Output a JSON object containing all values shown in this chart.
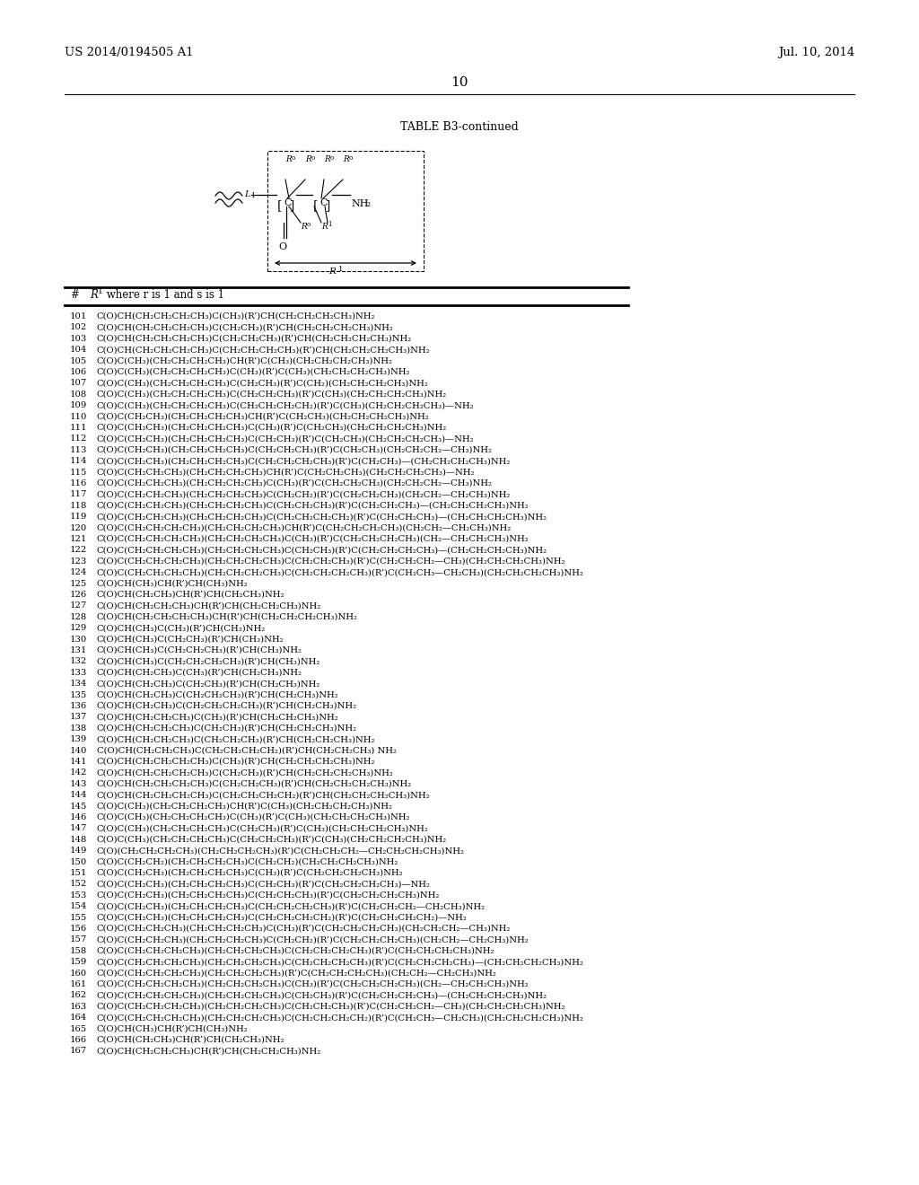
{
  "header_left": "US 2014/0194505 A1",
  "header_right": "Jul. 10, 2014",
  "page_number": "10",
  "table_title": "TABLE B3-continued",
  "background_color": "#ffffff",
  "text_color": "#000000",
  "entries": [
    "101  C(O)CH(CH₂CH₂CH₂CH₃)C(CH₃)(R’)CH(CH₂CH₂CH₂CH₃)NH₂",
    "102  C(O)CH(CH₂CH₂CH₂CH₃)C(CH₂CH₃)(R’)CH(CH₂CH₂CH₂CH₃)NH₂",
    "103  C(O)CH(CH₂CH₂CH₂CH₃)C(CH₂CH₂CH₃)(R’)CH(CH₂CH₂CH₂CH₃)NH₂",
    "104  C(O)CH(CH₂CH₂CH₂CH₃)C(CH₂CH₂CH₂CH₃)(R’)CH(CH₂CH₂CH₂CH₃)NH₂",
    "105  C(O)C(CH₃)(CH₂CH₂CH₂CH₃)CH(R’)C(CH₃)(CH₂CH₂CH₂CH₃)NH₂",
    "106  C(O)C(CH₃)(CH₂CH₂CH₂CH₃)C(CH₃)(R’)C(CH₃)(CH₂CH₂CH₂CH₃)NH₂",
    "107  C(O)C(CH₃)(CH₂CH₂CH₂CH₃)C(CH₂CH₃)(R’)C(CH₂)(CH₂CH₂CH₂CH₃)NH₂",
    "108  C(O)C(CH₃)(CH₂CH₂CH₂CH₃)C(CH₂CH₂CH₃)(R’)C(CH₃)(CH₂CH₂CH₂CH₃)NH₂",
    "109  C(O)C(CH₃)(CH₂CH₂CH₂CH₃)C(CH₂CH₂CH₂CH₂)(R’)C(CH₃)(CH₂CH₂CH₂CH₃)—NH₂",
    "110  C(O)C(CH₂CH₃)(CH₂CH₂CH₂CH₃)CH(R’)C(CH₂CH₃)(CH₂CH₂CH₂CH₃)NH₂",
    "111  C(O)C(CH₂CH₃)(CH₂CH₂CH₂CH₃)C(CH₃)(R’)C(CH₂CH₃)(CH₂CH₂CH₂CH₃)NH₂",
    "112  C(O)C(CH₂CH₃)(CH₂CH₂CH₂CH₃)C(CH₂CH₃)(R’)C(CH₂CH₃)(CH₂CH₂CH₂CH₃)—NH₂",
    "113  C(O)C(CH₂CH₃)(CH₂CH₂CH₂CH₃)C(CH₂CH₂CH₃)(R’)C(CH₂CH₃)(CH₂CH₂CH₂—CH₃)NH₂",
    "114  C(O)C(CH₂CH₃)(CH₂CH₂CH₂CH₃)C(CH₂CH₂CH₂CH₃)(R’)C(CH₂CH₃)—(CH₂CH₂CH₂CH₃)NH₂",
    "115  C(O)C(CH₂CH₂CH₃)(CH₂CH₂CH₂CH₃)CH(R’)C(CH₂CH₂CH₃)(CH₂CH₂CH₂CH₃)—NH₂",
    "116  C(O)C(CH₂CH₂CH₃)(CH₂CH₂CH₂CH₃)C(CH₃)(R’)C(CH₂CH₂CH₃)(CH₂CH₂CH₂—CH₃)NH₂",
    "117  C(O)C(CH₂CH₂CH₃)(CH₂CH₂CH₂CH₃)C(CH₂CH₂)(R’)C(CH₂CH₂CH₃)(CH₂CH₂—CH₂CH₃)NH₂",
    "118  C(O)C(CH₂CH₂CH₃)(CH₂CH₂CH₂CH₃)C(CH₂CH₂CH₃)(R’)C(CH₂CH₂CH₃)—(CH₂CH₂CH₂CH₃)NH₂",
    "119  C(O)C(CH₂CH₂CH₃)(CH₂CH₂CH₂CH₃)C(CH₂CH₂CH₂CH₂)(R’)C(CH₂CH₂CH₃)—(CH₂CH₂CH₂CH₃)NH₂",
    "120  C(O)C(CH₂CH₂CH₂CH₃)(CH₂CH₂CH₂CH₃)CH(R’)C(CH₂CH₂CH₂CH₃)(CH₂CH₂—CH₂CH₃)NH₂",
    "121  C(O)C(CH₂CH₂CH₂CH₃)(CH₂CH₂CH₂CH₃)C(CH₃)(R’)C(CH₂CH₂CH₂CH₃)(CH₂—CH₂CH₂CH₃)NH₂",
    "122  C(O)C(CH₂CH₂CH₂CH₃)(CH₂CH₂CH₂CH₃)C(CH₂CH₃)(R’)C(CH₂CH₂CH₂CH₃)—(CH₂CH₂CH₂CH₃)NH₂",
    "123  C(O)C(CH₂CH₂CH₂CH₃)(CH₂CH₂CH₂CH₃)C(CH₂CH₂CH₃)(R’)C(CH₂CH₂CH₂—CH₃)(CH₂CH₂CH₂CH₃)NH₂",
    "124  C(O)C(CH₂CH₂CH₂CH₃)(CH₂CH₂CH₂CH₃)C(CH₂CH₂CH₂CH₃)(R’)C(CH₂CH₃—CH₂CH₃)(CH₂CH₂CH₂CH₃)NH₂",
    "125  C(O)CH(CH₃)CH(R’)CH(CH₃)NH₂",
    "126  C(O)CH(CH₂CH₃)CH(R’)CH(CH₂CH₃)NH₂",
    "127  C(O)CH(CH₂CH₂CH₃)CH(R’)CH(CH₂CH₂CH₃)NH₂",
    "128  C(O)CH(CH₂CH₂CH₂CH₃)CH(R’)CH(CH₂CH₂CH₂CH₃)NH₂",
    "129  C(O)CH(CH₃)C(CH₃)(R’)CH(CH₃)NH₂",
    "130  C(O)CH(CH₃)C(CH₂CH₃)(R’)CH(CH₃)NH₂",
    "131  C(O)CH(CH₃)C(CH₂CH₂CH₃)(R’)CH(CH₃)NH₂",
    "132  C(O)CH(CH₃)C(CH₂CH₂CH₂CH₃)(R’)CH(CH₃)NH₂",
    "133  C(O)CH(CH₂CH₃)C(CH₃)(R’)CH(CH₂CH₃)NH₂",
    "134  C(O)CH(CH₂CH₃)C(CH₂CH₃)(R’)CH(CH₂CH₃)NH₂",
    "135  C(O)CH(CH₂CH₃)C(CH₂CH₂CH₃)(R’)CH(CH₂CH₃)NH₂",
    "136  C(O)CH(CH₂CH₃)C(CH₂CH₂CH₂CH₃)(R’)CH(CH₂CH₃)NH₂",
    "137  C(O)CH(CH₂CH₂CH₃)C(CH₃)(R’)CH(CH₂CH₂CH₃)NH₂",
    "138  C(O)CH(CH₂CH₂CH₃)C(CH₂CH₃)(R’)CH(CH₂CH₂CH₃)NH₂",
    "139  C(O)CH(CH₂CH₂CH₃)C(CH₂CH₂CH₃)(R’)CH(CH₂CH₂CH₃)NH₂",
    "140  C(O)CH(CH₂CH₂CH₃)C(CH₂CH₂CH₂CH₂)(R’)CH(CH₂CH₂CH₃) NH₂",
    "141  C(O)CH(CH₂CH₂CH₂CH₃)C(CH₃)(R’)CH(CH₂CH₂CH₂CH₃)NH₂",
    "142  C(O)CH(CH₂CH₂CH₂CH₃)C(CH₂CH₃)(R’)CH(CH₂CH₂CH₂CH₃)NH₂",
    "143  C(O)CH(CH₂CH₂CH₂CH₃)C(CH₂CH₂CH₃)(R’)CH(CH₂CH₂CH₂CH₃)NH₂",
    "144  C(O)CH(CH₂CH₂CH₂CH₃)C(CH₂CH₂CH₂CH₂)(R’)CH(CH₂CH₂CH₂CH₃)NH₂",
    "145  C(O)C(CH₃)(CH₂CH₂CH₂CH₃)CH(R’)C(CH₃)(CH₂CH₂CH₂CH₃)NH₂",
    "146  C(O)C(CH₃)(CH₂CH₂CH₂CH₃)C(CH₃)(R’)C(CH₃)(CH₂CH₂CH₂CH₃)NH₂",
    "147  C(O)C(CH₃)(CH₂CH₂CH₂CH₃)C(CH₂CH₃)(R’)C(CH₃)(CH₂CH₂CH₂CH₃)NH₂",
    "148  C(O)C(CH₃)(CH₂CH₂CH₂CH₃)C(CH₂CH₂CH₃)(R’)C(CH₃)(CH₂CH₂CH₂CH₃)NH₂",
    "149  C(O)(CH₂CH₂CH₂CH₃)(CH₂CH₂CH₂CH₃)(R’)C(CH₂CH₂CH₂—CH₂CH₂CH₂CH₃)NH₂",
    "150  C(O)C(CH₂CH₂)(CH₂CH₂CH₂CH₃)C(CH₂CH₂)(CH₂CH₂CH₂CH₃)NH₂",
    "151  C(O)C(CH₂CH₃)(CH₂CH₂CH₂CH₃)C(CH₃)(R’)C(CH₂CH₂CH₂CH₃)NH₂",
    "152  C(O)C(CH₂CH₃)(CH₂CH₂CH₂CH₃)C(CH₂CH₃)(R’)C(CH₂CH₂CH₂CH₃)—NH₂",
    "153  C(O)C(CH₂CH₃)(CH₂CH₂CH₂CH₃)C(CH₂CH₂CH₃)(R’)C(CH₂CH₂CH₂CH₃)NH₂",
    "154  C(O)C(CH₂CH₃)(CH₂CH₂CH₂CH₃)C(CH₂CH₂CH₂CH₃)(R’)C(CH₂CH₂CH₂—CH₂CH₃)NH₂",
    "155  C(O)C(CH₂CH₃)(CH₂CH₂CH₂CH₃)C(CH₂CH₂CH₂CH₂)(R’)C(CH₂CH₂CH₂CH₂)—NH₂",
    "156  C(O)C(CH₂CH₂CH₃)(CH₂CH₂CH₂CH₃)C(CH₃)(R’)C(CH₂CH₂CH₂CH₃)(CH₂CH₂CH₂—CH₃)NH₂",
    "157  C(O)C(CH₂CH₂CH₃)(CH₂CH₂CH₂CH₃)C(CH₂CH₂)(R’)C(CH₂CH₂CH₂CH₃)(CH₂CH₂—CH₂CH₃)NH₂",
    "158  C(O)C(CH₂CH₂CH₂CH₃)(CH₂CH₂CH₂CH₃)C(CH₂CH₂CH₂CH₃)(R’)C(CH₂CH₂CH₂CH₃)NH₂",
    "159  C(O)C(CH₂CH₂CH₂CH₃)(CH₂CH₂CH₂CH₃)C(CH₂CH₂CH₂CH₃)(R’)C(CH₂CH₂CH₂CH₃)—(CH₂CH₂CH₂CH₃)NH₂",
    "160  C(O)C(CH₂CH₂CH₂CH₃)(CH₂CH₂CH₂CH₃)(R’)C(CH₂CH₂CH₂CH₃)(CH₂CH₂—CH₂CH₃)NH₂",
    "161  C(O)C(CH₂CH₂CH₂CH₃)(CH₂CH₂CH₂CH₃)C(CH₃)(R’)C(CH₂CH₂CH₂CH₃)(CH₂—CH₂CH₂CH₃)NH₂",
    "162  C(O)C(CH₂CH₂CH₂CH₃)(CH₂CH₂CH₂CH₃)C(CH₂CH₃)(R’)C(CH₂CH₂CH₂CH₃)—(CH₂CH₂CH₂CH₃)NH₂",
    "163  C(O)C(CH₂CH₂CH₂CH₃)(CH₂CH₂CH₂CH₃)C(CH₂CH₂CH₃)(R’)C(CH₂CH₂CH₂—CH₃)(CH₂CH₂CH₂CH₃)NH₂",
    "164  C(O)C(CH₂CH₂CH₂CH₃)(CH₂CH₂CH₂CH₃)C(CH₂CH₂CH₂CH₂)(R’)C(CH₂CH₃—CH₂CH₃)(CH₂CH₂CH₂CH₃)NH₂",
    "165  C(O)CH(CH₃)CH(R’)CH(CH₃)NH₂",
    "166  C(O)CH(CH₂CH₃)CH(R’)CH(CH₂CH₃)NH₂",
    "167  C(O)CH(CH₂CH₂CH₃)CH(R’)CH(CH₂CH₂CH₃)NH₂"
  ]
}
